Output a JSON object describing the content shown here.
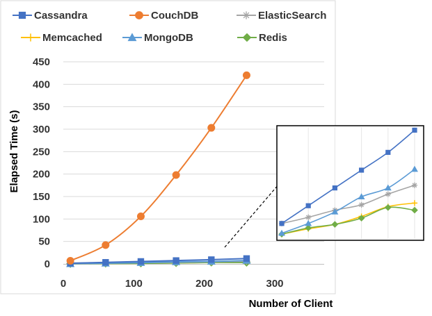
{
  "chart_data": {
    "type": "line",
    "title": "",
    "xlabel": "Number of Client",
    "ylabel": "Elapsed Time (s)",
    "xlim": [
      0,
      300
    ],
    "ylim": [
      0,
      450
    ],
    "xticks": [
      "0",
      "100",
      "200",
      "300"
    ],
    "yticks": [
      "0",
      "50",
      "100",
      "150",
      "200",
      "250",
      "300",
      "350",
      "400",
      "450"
    ],
    "grid": "horizontal",
    "legend_position": "top",
    "x": [
      10,
      60,
      110,
      160,
      210,
      260
    ],
    "series": [
      {
        "name": "Cassandra",
        "color": "#4472C4",
        "marker": "square",
        "values": [
          1.5,
          3.5,
          5.5,
          7.5,
          9.5,
          12.0
        ]
      },
      {
        "name": "CouchDB",
        "color": "#ED7D31",
        "marker": "circle",
        "values": [
          7,
          42,
          106,
          198,
          303,
          420
        ]
      },
      {
        "name": "ElasticSearch",
        "color": "#A5A5A5",
        "marker": "star",
        "values": [
          1.5,
          2.2,
          3.0,
          3.6,
          4.8,
          5.8
        ]
      },
      {
        "name": "Memcached",
        "color": "#FFC000",
        "marker": "plus",
        "values": [
          0.3,
          0.9,
          1.4,
          2.3,
          3.4,
          3.8
        ]
      },
      {
        "name": "MongoDB",
        "color": "#5B9BD5",
        "marker": "triangle",
        "values": [
          0.4,
          1.5,
          2.8,
          4.5,
          5.5,
          7.6
        ]
      },
      {
        "name": "Redis",
        "color": "#70AD47",
        "marker": "diamond",
        "values": [
          0.3,
          1.0,
          1.4,
          2.1,
          3.3,
          3.0
        ]
      }
    ],
    "inset": {
      "zoom_of": "bottom-right data region",
      "x": [
        10,
        60,
        110,
        160,
        210,
        260
      ],
      "ylim": [
        0,
        12.5
      ],
      "grid": "vertical"
    }
  }
}
